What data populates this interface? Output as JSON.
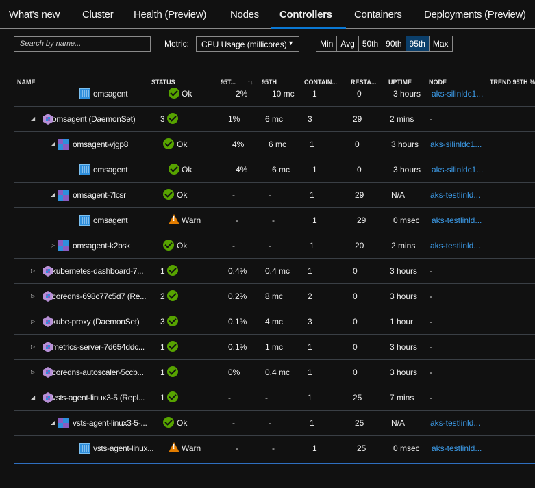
{
  "tabs": [
    {
      "label": "What's new",
      "active": false
    },
    {
      "label": "Cluster",
      "active": false
    },
    {
      "label": "Health (Preview)",
      "active": false
    },
    {
      "label": "Nodes",
      "active": false
    },
    {
      "label": "Controllers",
      "active": true
    },
    {
      "label": "Containers",
      "active": false
    },
    {
      "label": "Deployments (Preview)",
      "active": false
    }
  ],
  "toolbar": {
    "search_placeholder": "Search by name...",
    "metric_label": "Metric:",
    "metric_value": "CPU Usage (millicores)",
    "percentiles": [
      "Min",
      "Avg",
      "50th",
      "90th",
      "95th",
      "Max"
    ],
    "selected_percentile": "95th"
  },
  "columns": [
    "NAME",
    "STATUS",
    "95T...",
    "95TH",
    "CONTAIN...",
    "RESTA...",
    "UPTIME",
    "NODE",
    "TREND 95TH %"
  ],
  "rows": [
    {
      "level": 2,
      "expand": "",
      "name": "omsagent",
      "count": "",
      "status": "ok",
      "status_text": "Ok",
      "pct": "2%",
      "mc": "10 mc",
      "containers": "1",
      "restarts": "0",
      "uptime": "3 hours",
      "node": "aks-silinldc1..."
    },
    {
      "level": 0,
      "expand": "expanded",
      "name": "omsagent (DaemonSet)",
      "count": "3",
      "status": "ok",
      "status_text": "",
      "pct": "1%",
      "mc": "6 mc",
      "containers": "3",
      "restarts": "29",
      "uptime": "2 mins",
      "node": "-"
    },
    {
      "level": 1,
      "expand": "expanded",
      "name": "omsagent-vjgp8",
      "count": "",
      "status": "ok",
      "status_text": "Ok",
      "pct": "4%",
      "mc": "6 mc",
      "containers": "1",
      "restarts": "0",
      "uptime": "3 hours",
      "node": "aks-silinldc1..."
    },
    {
      "level": 2,
      "expand": "",
      "name": "omsagent",
      "count": "",
      "status": "ok",
      "status_text": "Ok",
      "pct": "4%",
      "mc": "6 mc",
      "containers": "1",
      "restarts": "0",
      "uptime": "3 hours",
      "node": "aks-silinldc1..."
    },
    {
      "level": 1,
      "expand": "expanded",
      "name": "omsagent-7lcsr",
      "count": "",
      "status": "ok",
      "status_text": "Ok",
      "pct": "-",
      "mc": "-",
      "containers": "1",
      "restarts": "29",
      "uptime": "N/A",
      "node": "aks-testlinld..."
    },
    {
      "level": 2,
      "expand": "",
      "name": "omsagent",
      "count": "",
      "status": "warn",
      "status_text": "Warn",
      "pct": "-",
      "mc": "-",
      "containers": "1",
      "restarts": "29",
      "uptime": "0 msec",
      "node": "aks-testlinld..."
    },
    {
      "level": 1,
      "expand": "collapsed",
      "name": "omsagent-k2bsk",
      "count": "",
      "status": "ok",
      "status_text": "Ok",
      "pct": "-",
      "mc": "-",
      "containers": "1",
      "restarts": "20",
      "uptime": "2 mins",
      "node": "aks-testlinld..."
    },
    {
      "level": 0,
      "expand": "collapsed",
      "name": "kubernetes-dashboard-7...",
      "count": "1",
      "status": "ok",
      "status_text": "",
      "pct": "0.4%",
      "mc": "0.4 mc",
      "containers": "1",
      "restarts": "0",
      "uptime": "3 hours",
      "node": "-"
    },
    {
      "level": 0,
      "expand": "collapsed",
      "name": "coredns-698c77c5d7 (Re...",
      "count": "2",
      "status": "ok",
      "status_text": "",
      "pct": "0.2%",
      "mc": "8 mc",
      "containers": "2",
      "restarts": "0",
      "uptime": "3 hours",
      "node": "-"
    },
    {
      "level": 0,
      "expand": "collapsed",
      "name": "kube-proxy (DaemonSet)",
      "count": "3",
      "status": "ok",
      "status_text": "",
      "pct": "0.1%",
      "mc": "4 mc",
      "containers": "3",
      "restarts": "0",
      "uptime": "1 hour",
      "node": "-"
    },
    {
      "level": 0,
      "expand": "collapsed",
      "name": "metrics-server-7d654ddc...",
      "count": "1",
      "status": "ok",
      "status_text": "",
      "pct": "0.1%",
      "mc": "1 mc",
      "containers": "1",
      "restarts": "0",
      "uptime": "3 hours",
      "node": "-"
    },
    {
      "level": 0,
      "expand": "collapsed",
      "name": "coredns-autoscaler-5ccb...",
      "count": "1",
      "status": "ok",
      "status_text": "",
      "pct": "0%",
      "mc": "0.4 mc",
      "containers": "1",
      "restarts": "0",
      "uptime": "3 hours",
      "node": "-"
    },
    {
      "level": 0,
      "expand": "expanded",
      "name": "vsts-agent-linux3-5 (Repl...",
      "count": "1",
      "status": "ok",
      "status_text": "",
      "pct": "-",
      "mc": "-",
      "containers": "1",
      "restarts": "25",
      "uptime": "7 mins",
      "node": "-"
    },
    {
      "level": 1,
      "expand": "expanded",
      "name": "vsts-agent-linux3-5-...",
      "count": "",
      "status": "ok",
      "status_text": "Ok",
      "pct": "-",
      "mc": "-",
      "containers": "1",
      "restarts": "25",
      "uptime": "N/A",
      "node": "aks-testlinld..."
    },
    {
      "level": 2,
      "expand": "",
      "name": "vsts-agent-linux...",
      "count": "",
      "status": "warn",
      "status_text": "Warn",
      "pct": "-",
      "mc": "-",
      "containers": "1",
      "restarts": "25",
      "uptime": "0 msec",
      "node": "aks-testlinld..."
    }
  ],
  "colors": {
    "accent": "#0a78d4",
    "ok": "#57a300",
    "warn": "#e37d00",
    "link": "#3c9be8",
    "selected_percentile": "#0b3f6b"
  }
}
